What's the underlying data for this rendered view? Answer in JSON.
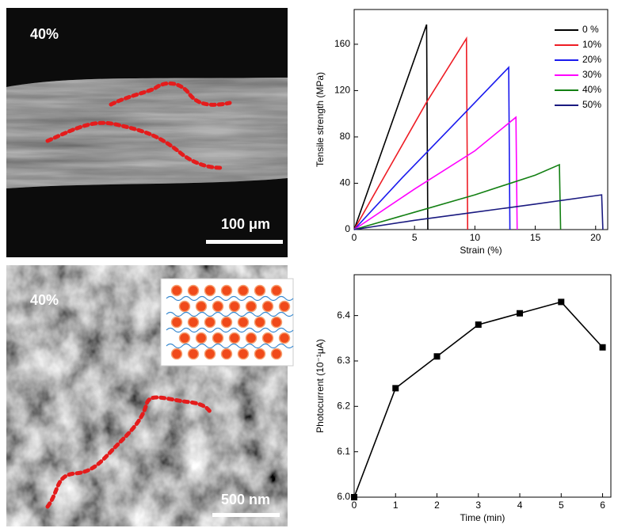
{
  "images": [
    {
      "label": "40%",
      "scale_bar": "100 μm"
    },
    {
      "label": "40%",
      "scale_bar": "500 nm"
    }
  ],
  "chart_data": [
    {
      "type": "line",
      "x_label": "Strain (%)",
      "y_label": "Tensile strength (MPa)",
      "xlim": [
        0,
        21
      ],
      "ylim": [
        0,
        190
      ],
      "xticks": [
        0,
        5,
        10,
        15,
        20
      ],
      "yticks": [
        0,
        40,
        80,
        120,
        160
      ],
      "legend": "upper right",
      "series": [
        {
          "name": "0 %",
          "color": "#000000",
          "x": [
            0,
            6,
            6.1
          ],
          "values": [
            0,
            177,
            0
          ]
        },
        {
          "name": "10%",
          "color": "#ee1c24",
          "x": [
            0,
            3,
            6,
            9.3,
            9.4
          ],
          "values": [
            0,
            55,
            110,
            165,
            0
          ]
        },
        {
          "name": "20%",
          "color": "#1a1aee",
          "x": [
            0,
            4,
            8,
            12.8,
            12.9
          ],
          "values": [
            0,
            45,
            88,
            140,
            0
          ]
        },
        {
          "name": "30%",
          "color": "#ff00ff",
          "x": [
            0,
            5,
            10,
            13.4,
            13.5
          ],
          "values": [
            0,
            35,
            68,
            97,
            0
          ]
        },
        {
          "name": "40%",
          "color": "#138013",
          "x": [
            0,
            5,
            10,
            15,
            17,
            17.1
          ],
          "values": [
            0,
            15,
            30,
            47,
            56,
            0
          ]
        },
        {
          "name": "50%",
          "color": "#1a1a80",
          "x": [
            0,
            5,
            10,
            15,
            20.5,
            20.6
          ],
          "values": [
            0,
            8,
            15,
            22,
            30,
            0
          ]
        }
      ]
    },
    {
      "type": "line",
      "x_label": "Time (min)",
      "y_label": "Photocurrent  (10⁻¹μA)",
      "xlim": [
        0,
        6.2
      ],
      "ylim": [
        6.0,
        6.49
      ],
      "xticks": [
        0,
        1,
        2,
        3,
        4,
        5,
        6
      ],
      "yticks": [
        {
          "value": 6,
          "label": "6.0"
        },
        6.1,
        6.2,
        6.3,
        6.4
      ],
      "marker": "square",
      "color": "#000000",
      "x": [
        0,
        1,
        2,
        3,
        4,
        5,
        6
      ],
      "values": [
        6.0,
        6.24,
        6.31,
        6.38,
        6.405,
        6.43,
        6.33
      ]
    }
  ]
}
